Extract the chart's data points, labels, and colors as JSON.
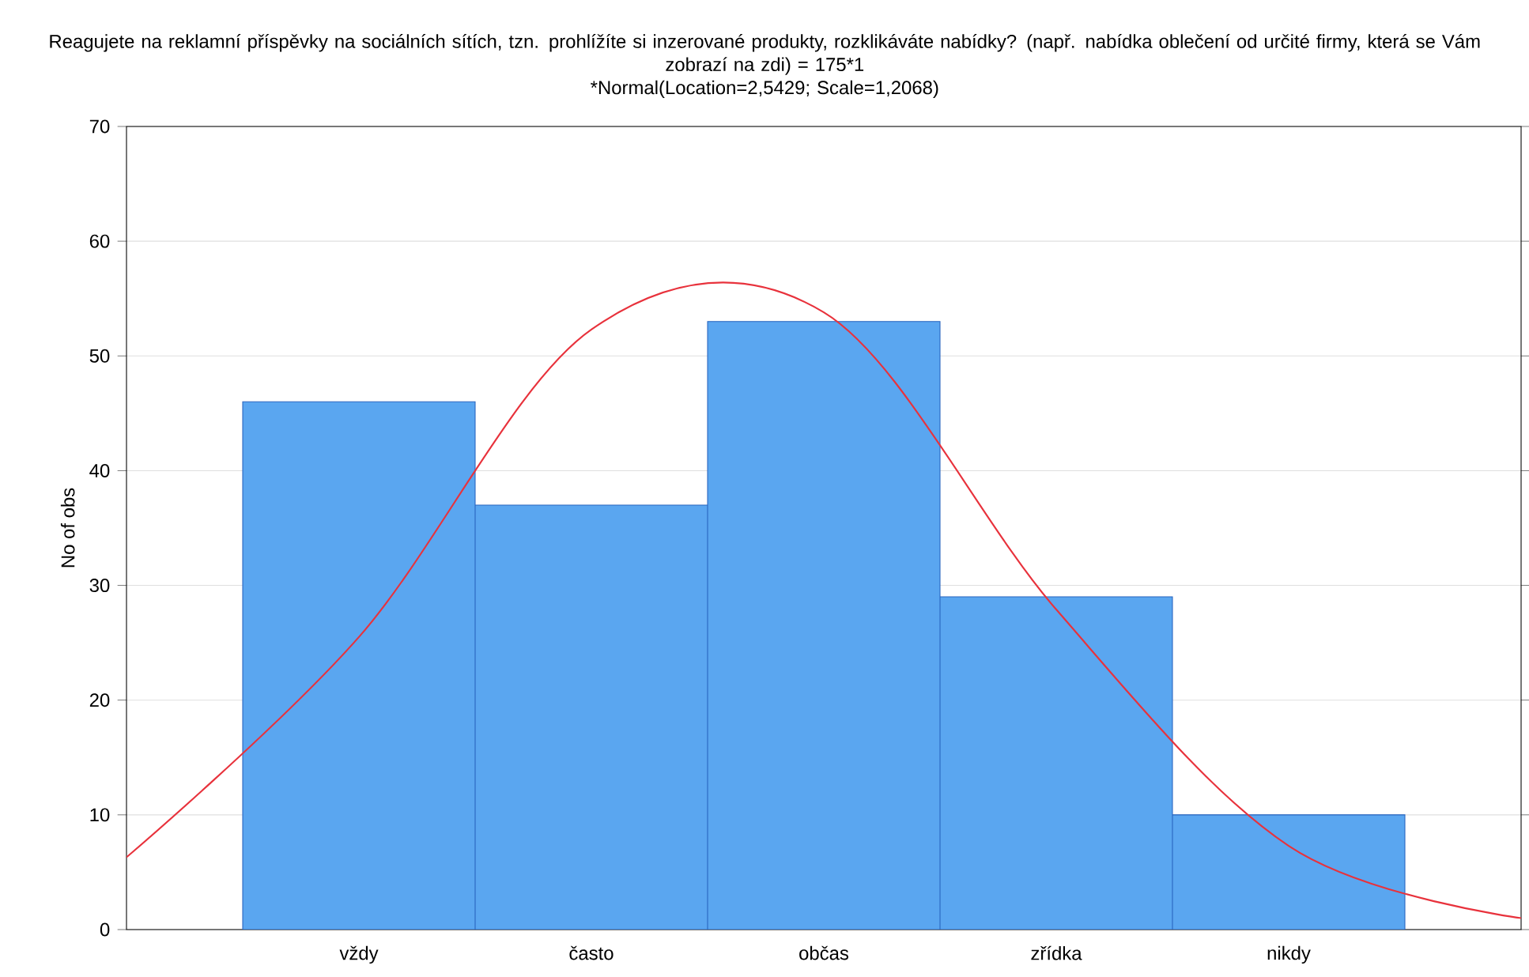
{
  "chart_data": {
    "type": "bar",
    "title": "Reagujete na reklamní příspěvky na sociálních sítích, tzn. prohlížíte si inzerované produkty, rozklikáváte nabídky? (např. nabídka oblečení od určité firmy, která se Vám zobrazí na zdi) = 175*1",
    "subtitle": "*Normal(Location=2,5429; Scale=1,2068)",
    "ylabel": "No of obs",
    "categories": [
      null,
      "vždy",
      "často",
      "občas",
      "zřídka",
      "nikdy",
      null
    ],
    "series": [
      {
        "color": "#5aa6f0",
        "values": [
          null,
          46,
          37,
          53,
          29,
          10,
          null
        ]
      },
      {
        "type": "line",
        "color": "#e8323c",
        "values": [
          6.3,
          25.5,
          52.3,
          53.8,
          27.9,
          7.3,
          1.0
        ]
      }
    ],
    "ylim": [
      0,
      70
    ],
    "yticks": [
      0,
      10,
      20,
      30,
      40,
      50,
      60,
      70
    ],
    "grid": "y"
  }
}
